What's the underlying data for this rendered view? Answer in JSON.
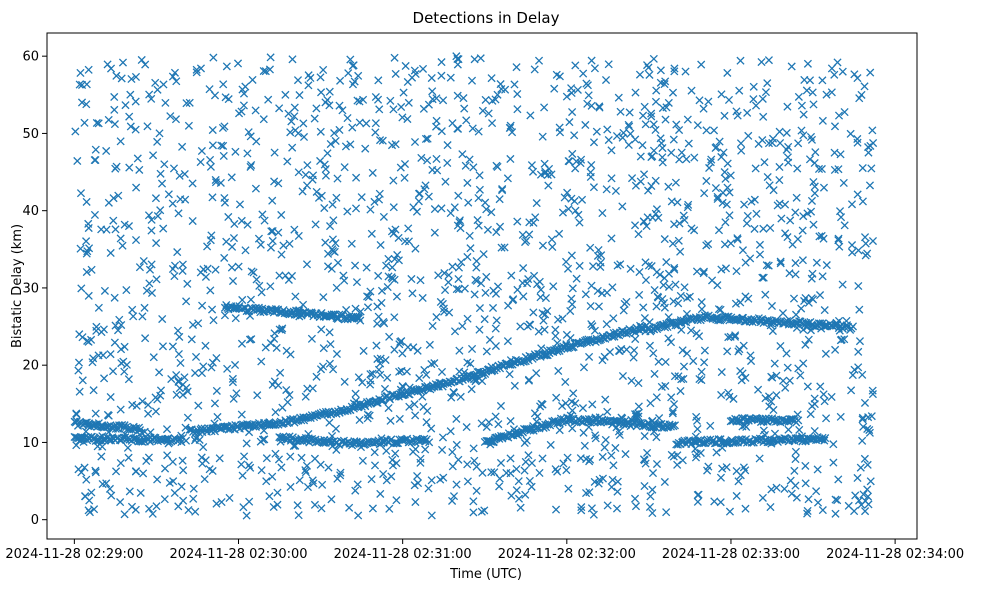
{
  "chart_data": {
    "type": "scatter",
    "title": "Detections in Delay",
    "xlabel": "Time (UTC)",
    "ylabel": "Bistatic Delay (km)",
    "x_unit": "UTC time",
    "xlim": [
      "2024-11-28 02:28:50",
      "2024-11-28 02:34:08"
    ],
    "ylim": [
      -2.5,
      63
    ],
    "xticks": [
      "2024-11-28 02:29:00",
      "2024-11-28 02:30:00",
      "2024-11-28 02:31:00",
      "2024-11-28 02:32:00",
      "2024-11-28 02:33:00",
      "2024-11-28 02:34:00"
    ],
    "yticks": [
      0,
      10,
      20,
      30,
      40,
      50,
      60
    ],
    "marker": "x",
    "color": "#1f77b4",
    "grid": false,
    "legend": "none",
    "time_range": [
      "2024-11-28 02:29:00",
      "2024-11-28 02:33:52"
    ],
    "tracks": [
      {
        "points": [
          [
            "2024-11-28 02:29:00",
            12.5
          ],
          [
            "2024-11-28 02:29:10",
            12.2
          ],
          [
            "2024-11-28 02:29:20",
            11.9
          ],
          [
            "2024-11-28 02:29:25",
            11.5
          ]
        ]
      },
      {
        "points": [
          [
            "2024-11-28 02:29:42",
            11.4
          ],
          [
            "2024-11-28 02:30:00",
            12.0
          ],
          [
            "2024-11-28 02:30:20",
            12.8
          ],
          [
            "2024-11-28 02:30:40",
            14.3
          ],
          [
            "2024-11-28 02:31:00",
            16.3
          ],
          [
            "2024-11-28 02:31:20",
            18.0
          ],
          [
            "2024-11-28 02:31:40",
            20.3
          ],
          [
            "2024-11-28 02:32:00",
            22.3
          ],
          [
            "2024-11-28 02:32:20",
            24.2
          ],
          [
            "2024-11-28 02:32:30",
            25.0
          ]
        ]
      },
      {
        "points": [
          [
            "2024-11-28 02:29:55",
            27.5
          ],
          [
            "2024-11-28 02:30:20",
            26.8
          ],
          [
            "2024-11-28 02:30:45",
            26.0
          ]
        ]
      },
      {
        "points": [
          [
            "2024-11-28 02:32:30",
            24.6
          ],
          [
            "2024-11-28 02:32:50",
            26.2
          ],
          [
            "2024-11-28 02:33:10",
            25.8
          ],
          [
            "2024-11-28 02:33:30",
            25.3
          ],
          [
            "2024-11-28 02:33:45",
            24.8
          ]
        ]
      },
      {
        "points": [
          [
            "2024-11-28 02:29:00",
            10.5
          ],
          [
            "2024-11-28 02:29:20",
            10.4
          ],
          [
            "2024-11-28 02:29:40",
            10.3
          ]
        ]
      },
      {
        "points": [
          [
            "2024-11-28 02:30:15",
            10.6
          ],
          [
            "2024-11-28 02:30:40",
            9.9
          ],
          [
            "2024-11-28 02:31:10",
            10.3
          ]
        ]
      },
      {
        "points": [
          [
            "2024-11-28 02:31:30",
            10.0
          ],
          [
            "2024-11-28 02:32:00",
            13.0
          ],
          [
            "2024-11-28 02:32:20",
            12.5
          ],
          [
            "2024-11-28 02:32:40",
            12.0
          ]
        ]
      },
      {
        "points": [
          [
            "2024-11-28 02:32:40",
            10.0
          ],
          [
            "2024-11-28 02:33:05",
            10.2
          ],
          [
            "2024-11-28 02:33:35",
            10.5
          ]
        ]
      },
      {
        "points": [
          [
            "2024-11-28 02:33:00",
            13.0
          ],
          [
            "2024-11-28 02:33:25",
            12.8
          ]
        ]
      }
    ],
    "scatter_count": 1900,
    "scatter_y_range": [
      0.5,
      60
    ]
  }
}
